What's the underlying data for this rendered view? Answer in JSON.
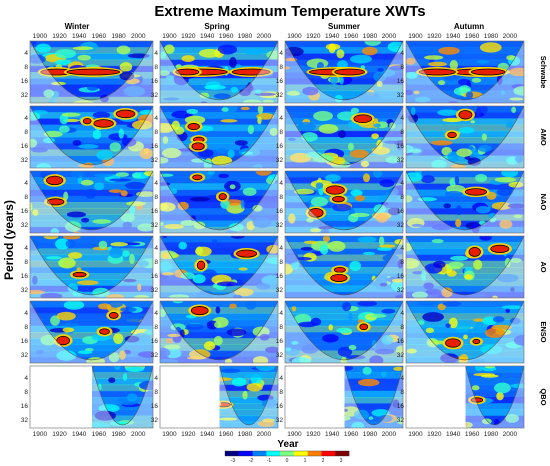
{
  "chart_data": {
    "type": "heatmap",
    "title": "Extreme Maximum Temperature XWTs",
    "columns": [
      "Winter",
      "Spring",
      "Summer",
      "Autumn"
    ],
    "rows": [
      "Schwabe",
      "AMO",
      "NAO",
      "AO",
      "ENSO",
      "QBO"
    ],
    "ylabel": "Period (years)",
    "xlabel": "Year",
    "x_ticks_top": [
      "1900",
      "1920",
      "1940",
      "1960",
      "1980",
      "2000"
    ],
    "x_ticks_bottom": [
      "1900",
      "1920",
      "1940",
      "1960",
      "1980",
      "2000"
    ],
    "y_ticks": [
      "4",
      "8",
      "16",
      "32"
    ],
    "xlim": [
      1890,
      2015
    ],
    "colorbar": {
      "ticks": [
        "-3",
        "-2",
        "-1",
        "0",
        "1",
        "2",
        "3"
      ],
      "colors": [
        "#00007f",
        "#0000ff",
        "#007fff",
        "#00ffff",
        "#7fff7f",
        "#ffff00",
        "#ff7f00",
        "#ff0000",
        "#7f0000"
      ]
    },
    "qbo_start_year": 1953
  }
}
